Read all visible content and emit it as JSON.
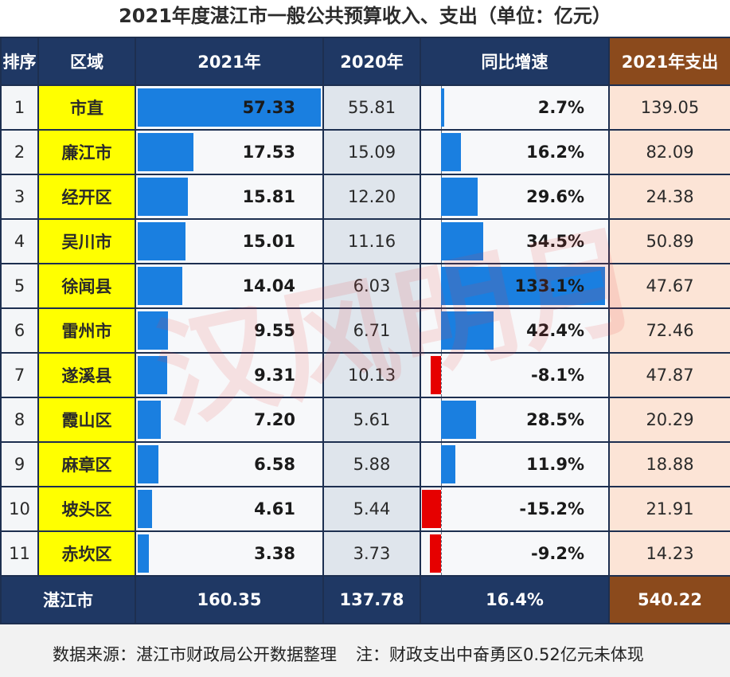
{
  "title": "2021年度湛江市一般公共预算收入、支出（单位：亿元）",
  "headers": {
    "rank": "排序",
    "region": "区域",
    "y2021": "2021年",
    "y2020": "2020年",
    "growth": "同比增速",
    "exp2021": "2021年支出"
  },
  "chart_data": {
    "type": "table",
    "title": "2021年度湛江市一般公共预算收入、支出（单位：亿元）",
    "columns": [
      "排序",
      "区域",
      "2021年",
      "2020年",
      "同比增速",
      "2021年支出"
    ],
    "rows": [
      {
        "rank": "1",
        "region": "市直",
        "y2021": "57.33",
        "y2020": "55.81",
        "growth": "2.7%",
        "exp": "139.05"
      },
      {
        "rank": "2",
        "region": "廉江市",
        "y2021": "17.53",
        "y2020": "15.09",
        "growth": "16.2%",
        "exp": "82.09"
      },
      {
        "rank": "3",
        "region": "经开区",
        "y2021": "15.81",
        "y2020": "12.20",
        "growth": "29.6%",
        "exp": "24.38"
      },
      {
        "rank": "4",
        "region": "吴川市",
        "y2021": "15.01",
        "y2020": "11.16",
        "growth": "34.5%",
        "exp": "50.89"
      },
      {
        "rank": "5",
        "region": "徐闻县",
        "y2021": "14.04",
        "y2020": "6.03",
        "growth": "133.1%",
        "exp": "47.67"
      },
      {
        "rank": "6",
        "region": "雷州市",
        "y2021": "9.55",
        "y2020": "6.71",
        "growth": "42.4%",
        "exp": "72.46"
      },
      {
        "rank": "7",
        "region": "遂溪县",
        "y2021": "9.31",
        "y2020": "10.13",
        "growth": "-8.1%",
        "exp": "47.87"
      },
      {
        "rank": "8",
        "region": "霞山区",
        "y2021": "7.20",
        "y2020": "5.61",
        "growth": "28.5%",
        "exp": "20.29"
      },
      {
        "rank": "9",
        "region": "麻章区",
        "y2021": "6.58",
        "y2020": "5.88",
        "growth": "11.9%",
        "exp": "18.88"
      },
      {
        "rank": "10",
        "region": "坡头区",
        "y2021": "4.61",
        "y2020": "5.44",
        "growth": "-15.2%",
        "exp": "21.91"
      },
      {
        "rank": "11",
        "region": "赤坎区",
        "y2021": "3.38",
        "y2020": "3.73",
        "growth": "-9.2%",
        "exp": "14.23"
      }
    ],
    "total": {
      "region": "湛江市",
      "y2021": "160.35",
      "y2020": "137.78",
      "growth": "16.4%",
      "exp": "540.22"
    },
    "bar_columns": [
      "2021年",
      "同比增速"
    ],
    "colors": {
      "positive_bar": "#1a7fe0",
      "negative_bar": "#e60000",
      "region_fill": "#ffff00",
      "header": "#1f3864",
      "expense_header": "#8b4a1c",
      "expense_fill": "#fce4d6"
    }
  },
  "footer": {
    "source": "数据来源：湛江市财政局公开数据整理",
    "note": "注：财政支出中奋勇区0.52亿元未体现"
  },
  "watermark": "汉风明月"
}
